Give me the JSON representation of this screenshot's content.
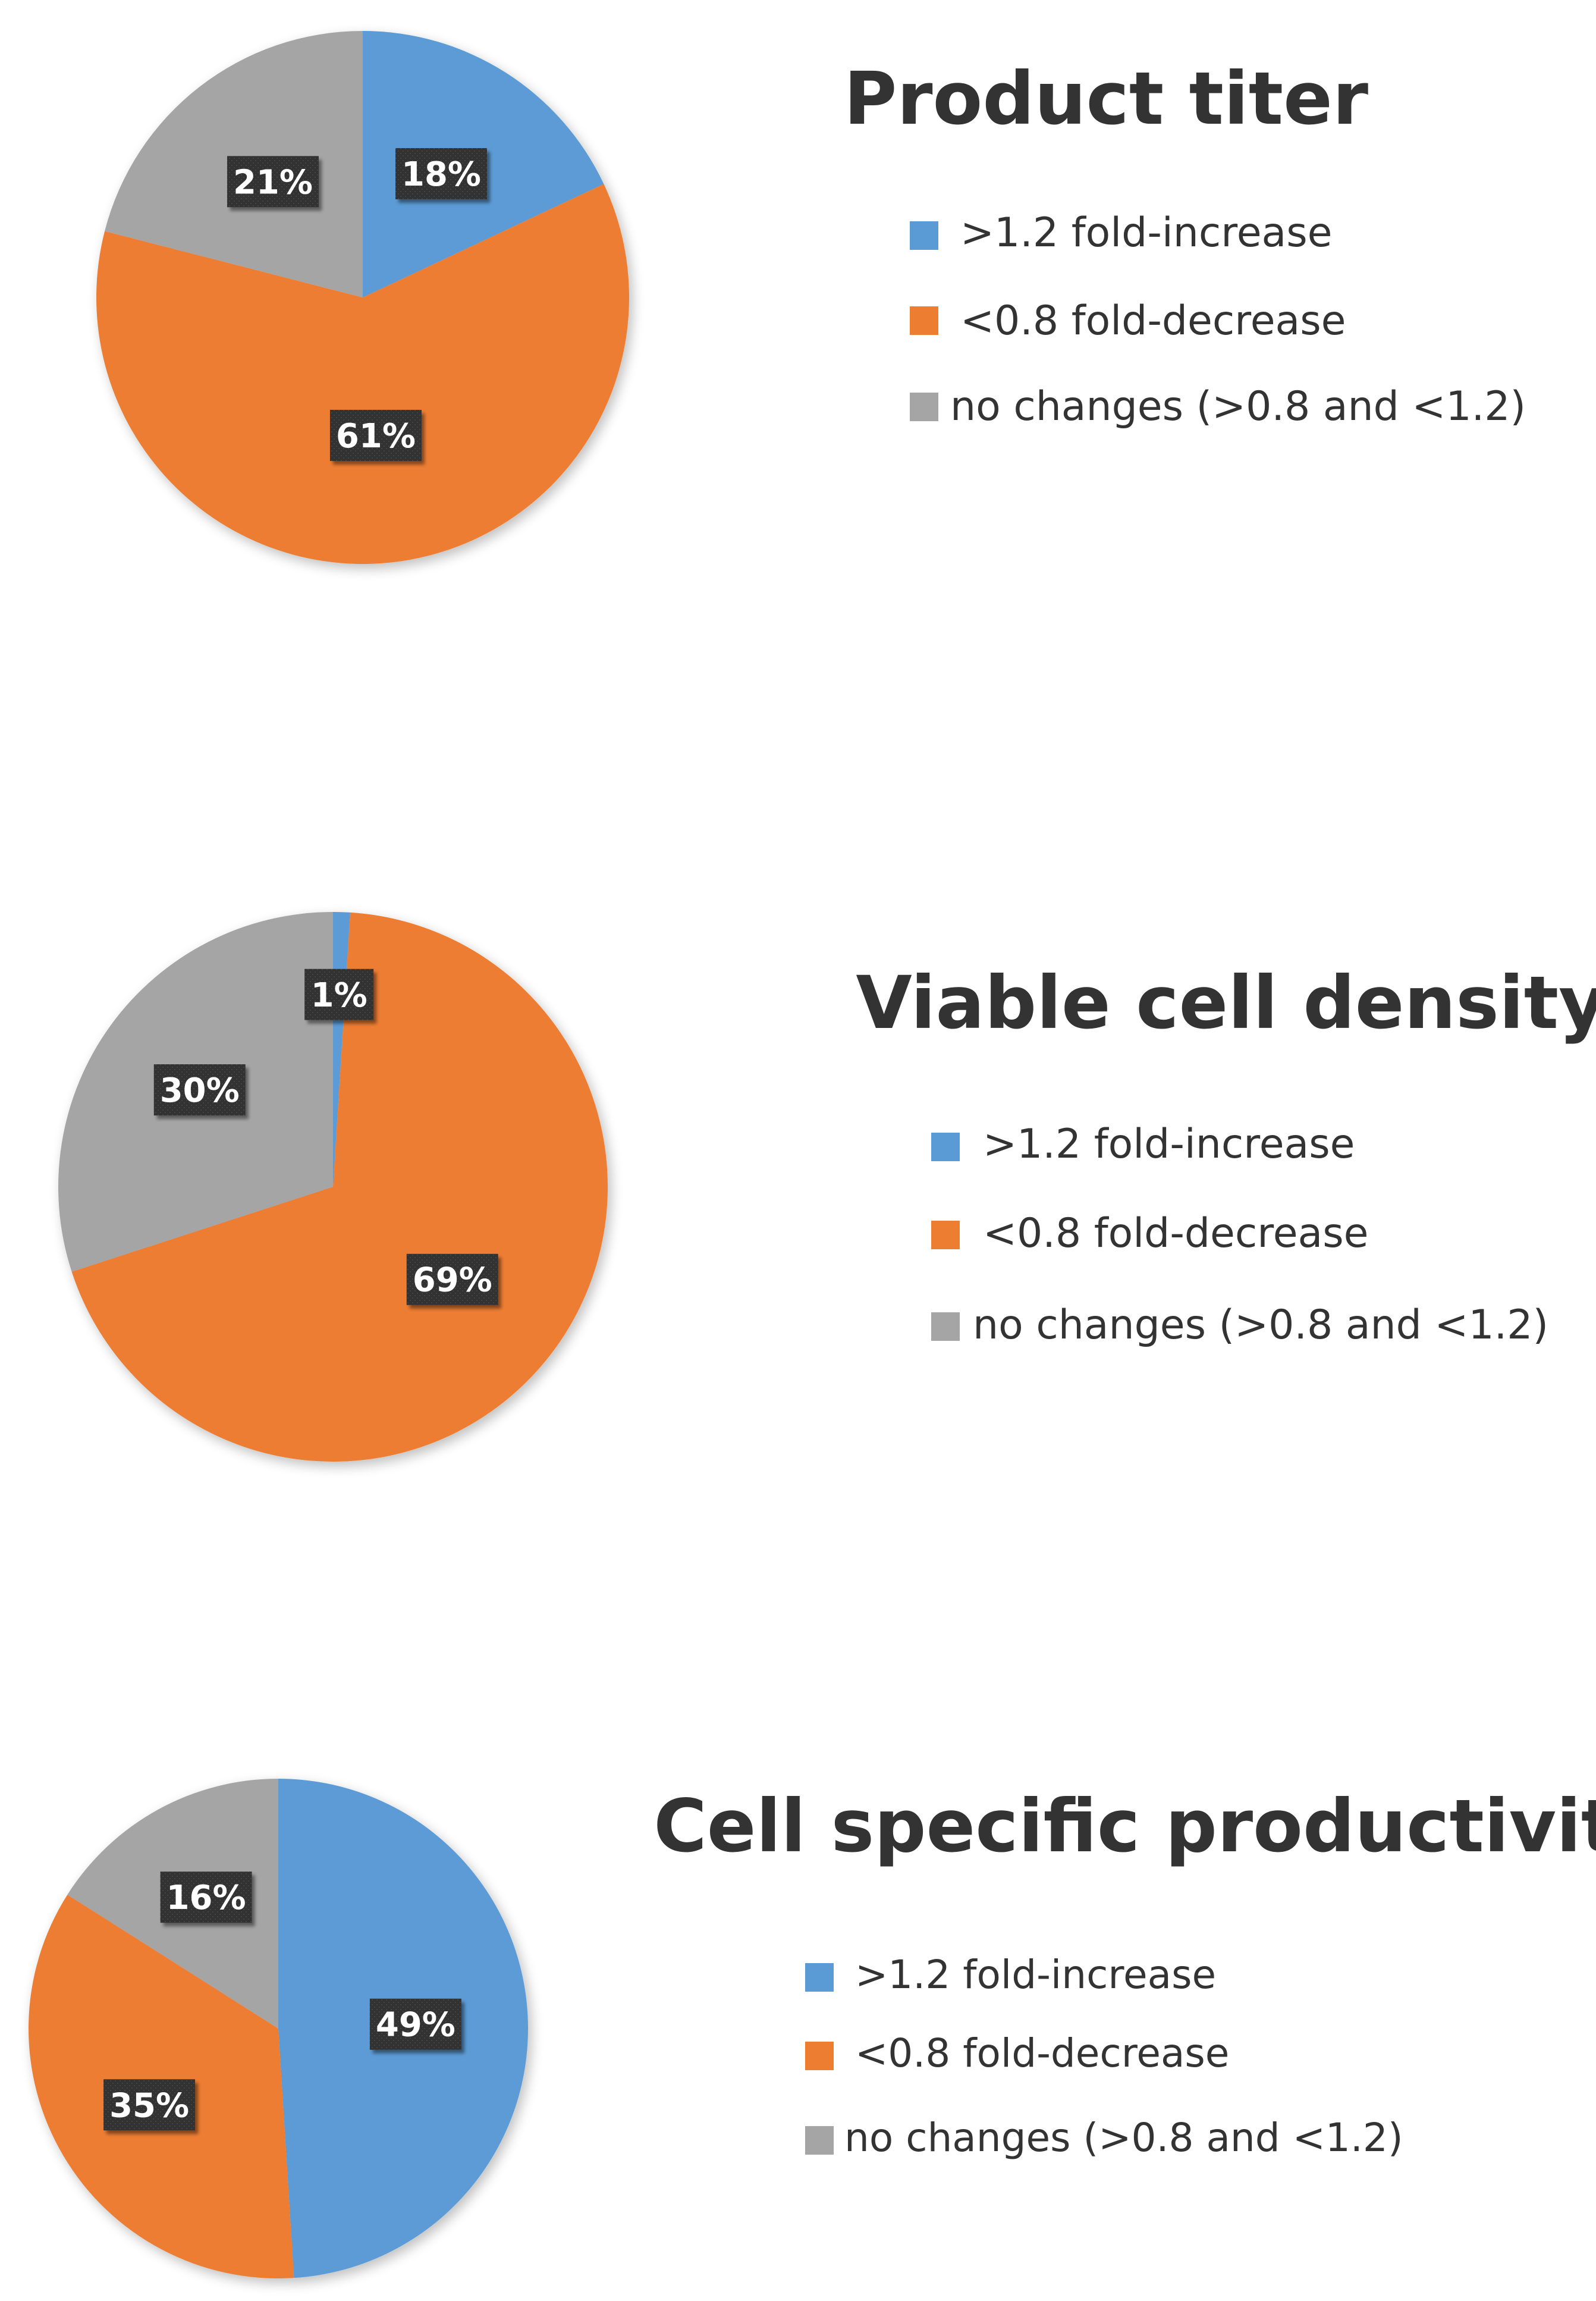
{
  "colors": {
    "increase": "#5b9bd5",
    "decrease": "#ed7d31",
    "no_change": "#a5a5a5",
    "label_box": "#333333",
    "label_text": "#ffffff",
    "title_text": "#333333"
  },
  "chart_data": [
    {
      "type": "pie",
      "title": "Product titer",
      "categories": [
        ">1.2 fold-increase",
        "<0.8 fold-decrease",
        "no changes (>0.8 and <1.2)"
      ],
      "values": [
        18,
        61,
        21
      ],
      "data_labels": [
        "18%",
        "61%",
        "21%"
      ],
      "legend": ">1.2 fold-increase, <0.8 fold-decrease, no changes (>0.8 and <1.2)",
      "legend_position": "right"
    },
    {
      "type": "pie",
      "title": "Viable cell density",
      "categories": [
        ">1.2 fold-increase",
        "<0.8 fold-decrease",
        "no changes (>0.8 and <1.2)"
      ],
      "values": [
        1,
        69,
        30
      ],
      "data_labels": [
        "1%",
        "69%",
        "30%"
      ],
      "legend_position": "right"
    },
    {
      "type": "pie",
      "title": "Cell specific productivity",
      "categories": [
        ">1.2 fold-increase",
        "<0.8 fold-decrease",
        "no changes (>0.8 and <1.2)"
      ],
      "values": [
        49,
        35,
        16
      ],
      "data_labels": [
        "49%",
        "35%",
        "16%"
      ],
      "legend_position": "right"
    }
  ]
}
